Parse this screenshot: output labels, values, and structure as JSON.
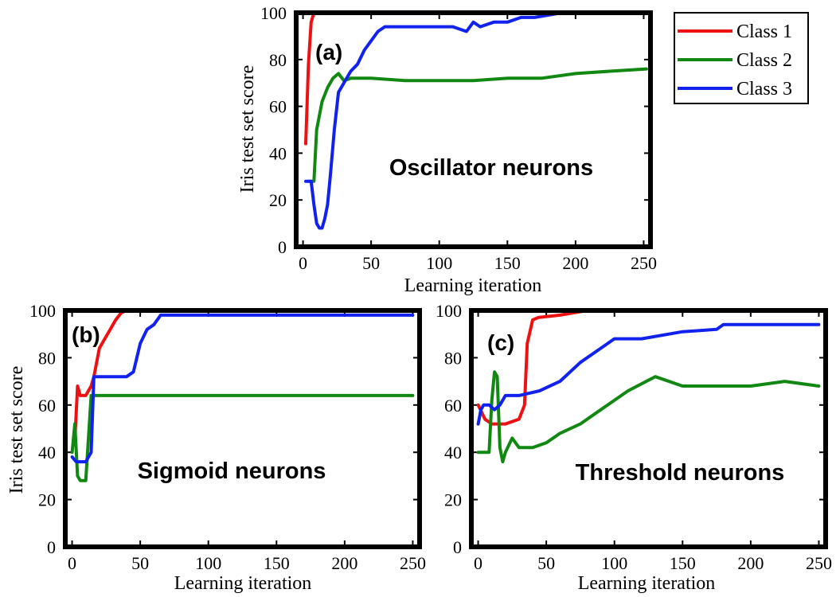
{
  "colors": {
    "class_1": "#ee1111",
    "class_2": "#118811",
    "class_3": "#1122ee"
  },
  "legend": {
    "entries": [
      "Class 1",
      "Class 2",
      "Class 3"
    ]
  },
  "chart_data": [
    {
      "type": "line",
      "panel_tag": "(a)",
      "title": "Oscillator neurons",
      "xlabel": "Learning iteration",
      "ylabel": "Iris test set score",
      "xlim": [
        -5,
        255
      ],
      "ylim": [
        0,
        100
      ],
      "xticks": [
        0,
        50,
        100,
        150,
        200,
        250
      ],
      "yticks": [
        0,
        20,
        40,
        60,
        80,
        100
      ],
      "series": [
        {
          "name": "Class 1",
          "color": "#ee1111",
          "x": [
            2,
            4,
            6,
            8,
            60,
            150,
            180,
            185
          ],
          "y": [
            44,
            78,
            96,
            100,
            100,
            100,
            100,
            100
          ]
        },
        {
          "name": "Class 2",
          "color": "#118811",
          "x": [
            4,
            8,
            10,
            14,
            18,
            22,
            26,
            30,
            35,
            50,
            75,
            100,
            125,
            150,
            175,
            200,
            225,
            252
          ],
          "y": [
            28,
            28,
            50,
            62,
            68,
            72,
            74,
            71,
            72,
            72,
            71,
            71,
            71,
            72,
            72,
            74,
            75,
            76
          ]
        },
        {
          "name": "Class 3",
          "color": "#1122ee",
          "x": [
            2,
            6,
            8,
            10,
            12,
            14,
            16,
            18,
            20,
            23,
            26,
            30,
            35,
            40,
            45,
            50,
            55,
            60,
            75,
            95,
            110,
            120,
            125,
            130,
            140,
            150,
            160,
            170,
            190,
            252
          ],
          "y": [
            28,
            28,
            18,
            10,
            8,
            8,
            12,
            18,
            30,
            50,
            66,
            70,
            75,
            78,
            84,
            88,
            92,
            94,
            94,
            94,
            94,
            92,
            96,
            94,
            96,
            96,
            98,
            98,
            100,
            100
          ]
        }
      ]
    },
    {
      "type": "line",
      "panel_tag": "(b)",
      "title": "Sigmoid neurons",
      "xlabel": "Learning iteration",
      "ylabel": "Iris test set score",
      "xlim": [
        -5,
        255
      ],
      "ylim": [
        0,
        100
      ],
      "xticks": [
        0,
        50,
        100,
        150,
        200,
        250
      ],
      "yticks": [
        0,
        20,
        40,
        60,
        80,
        100
      ],
      "series": [
        {
          "name": "Class 1",
          "color": "#ee1111",
          "x": [
            2,
            4,
            6,
            8,
            10,
            12,
            14,
            16,
            18,
            20,
            24,
            28,
            32,
            36,
            40,
            250
          ],
          "y": [
            45,
            68,
            64,
            64,
            64,
            66,
            68,
            72,
            78,
            84,
            88,
            92,
            96,
            99,
            100,
            100
          ]
        },
        {
          "name": "Class 2",
          "color": "#118811",
          "x": [
            0,
            2,
            4,
            6,
            10,
            14,
            16,
            18,
            250
          ],
          "y": [
            40,
            52,
            30,
            28,
            28,
            64,
            64,
            64,
            64
          ]
        },
        {
          "name": "Class 3",
          "color": "#1122ee",
          "x": [
            0,
            3,
            10,
            14,
            16,
            18,
            40,
            45,
            50,
            55,
            60,
            65,
            250
          ],
          "y": [
            38,
            36,
            36,
            40,
            72,
            72,
            72,
            74,
            86,
            92,
            94,
            98,
            98
          ]
        }
      ]
    },
    {
      "type": "line",
      "panel_tag": "(c)",
      "title": "Threshold neurons",
      "xlabel": "Learning iteration",
      "ylabel": "Iris test set score",
      "xlim": [
        -5,
        255
      ],
      "ylim": [
        0,
        100
      ],
      "xticks": [
        0,
        50,
        100,
        150,
        200,
        250
      ],
      "yticks": [
        0,
        20,
        40,
        60,
        80,
        100
      ],
      "series": [
        {
          "name": "Class 1",
          "color": "#ee1111",
          "x": [
            0,
            5,
            10,
            20,
            30,
            34,
            36,
            40,
            44,
            60,
            80,
            100,
            150,
            250
          ],
          "y": [
            60,
            54,
            52,
            52,
            54,
            60,
            86,
            96,
            97,
            98,
            100,
            100,
            100,
            100
          ]
        },
        {
          "name": "Class 2",
          "color": "#118811",
          "x": [
            0,
            8,
            10,
            12,
            14,
            16,
            18,
            20,
            25,
            30,
            40,
            50,
            60,
            75,
            90,
            110,
            130,
            150,
            175,
            200,
            225,
            250
          ],
          "y": [
            40,
            40,
            62,
            74,
            72,
            42,
            36,
            40,
            46,
            42,
            42,
            44,
            48,
            52,
            58,
            66,
            72,
            68,
            68,
            68,
            70,
            68
          ]
        },
        {
          "name": "Class 3",
          "color": "#1122ee",
          "x": [
            0,
            2,
            4,
            8,
            12,
            16,
            20,
            30,
            45,
            60,
            75,
            90,
            100,
            120,
            150,
            175,
            180,
            250
          ],
          "y": [
            52,
            58,
            60,
            60,
            58,
            60,
            64,
            64,
            66,
            70,
            78,
            84,
            88,
            88,
            91,
            92,
            94,
            94
          ]
        }
      ]
    }
  ]
}
